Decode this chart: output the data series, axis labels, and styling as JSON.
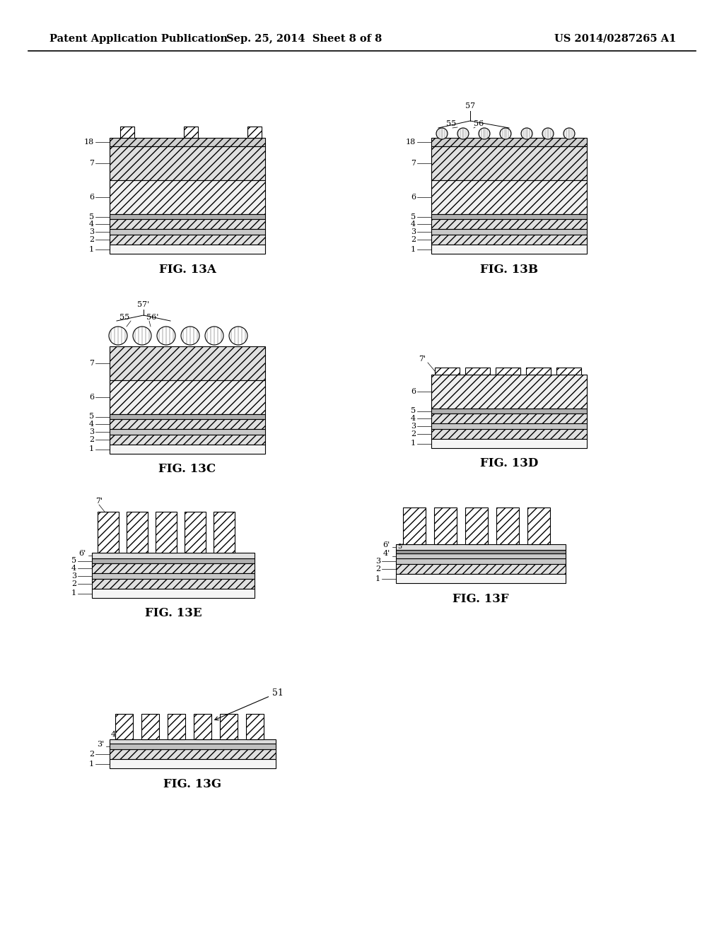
{
  "header_left": "Patent Application Publication",
  "header_center": "Sep. 25, 2014  Sheet 8 of 8",
  "header_right": "US 2014/0287265 A1",
  "bg": "#ffffff",
  "lc": "#000000",
  "fig_labels": [
    "FIG. 13A",
    "FIG. 13B",
    "FIG. 13C",
    "FIG. 13D",
    "FIG. 13E",
    "FIG. 13F",
    "FIG. 13G"
  ]
}
